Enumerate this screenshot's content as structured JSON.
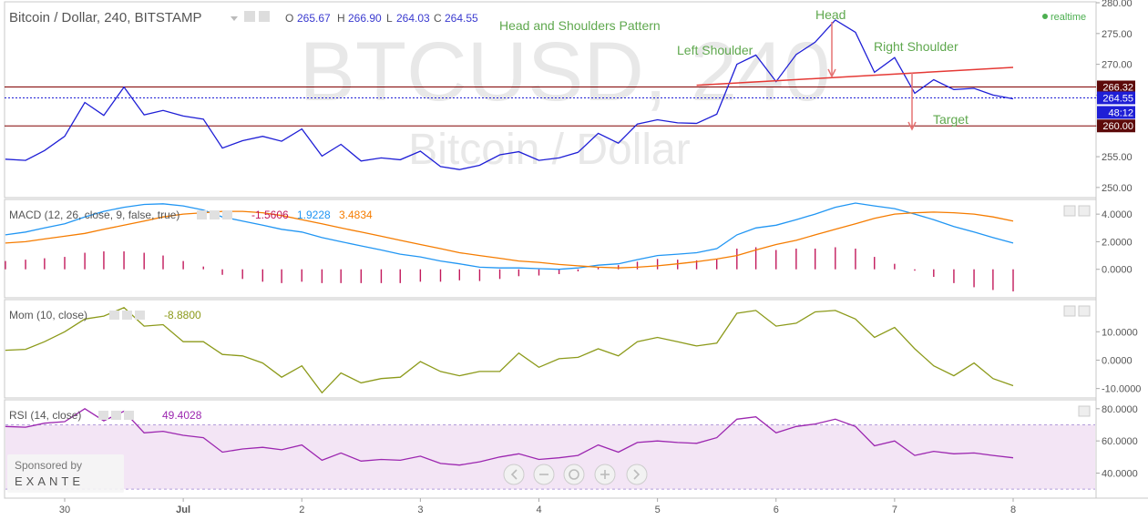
{
  "header": {
    "symbol": "Bitcoin / Dollar, 240, BITSTAMP",
    "o_label": "O",
    "o_value": "265.67",
    "h_label": "H",
    "h_value": "266.90",
    "l_label": "L",
    "l_value": "264.03",
    "c_label": "C",
    "c_value": "264.55",
    "realtime": "realtime"
  },
  "watermark": {
    "main": "BTCUSD, 240",
    "sub": "Bitcoin / Dollar"
  },
  "annotations": {
    "pattern": "Head and Shoulders Pattern",
    "head": "Head",
    "left_shoulder": "Left Shoulder",
    "right_shoulder": "Right Shoulder",
    "target": "Target"
  },
  "price_markers": {
    "resistance": "266.32",
    "last": "264.55",
    "countdown": "48:12",
    "support": "260.00"
  },
  "sponsor": {
    "line1": "Sponsored by",
    "line2": "EXANTE"
  },
  "colors": {
    "price": "#1f1fd6",
    "macd": "#2196f3",
    "signal": "#f57c00",
    "hist": "#c2185b",
    "mom": "#8c9a1a",
    "rsi": "#9c27b0",
    "rsi_band": "#f3e5f5",
    "level_line": "#800000",
    "neckline": "#e53935",
    "annotation": "#5fa84e"
  },
  "chart_data": [
    {
      "type": "line",
      "pane": "price",
      "ylim": [
        248.5,
        280
      ],
      "yticks": [
        "250.00",
        "255.00",
        "260.00",
        "265.00",
        "270.00",
        "275.00",
        "280.00"
      ],
      "x": [
        -0.5,
        -0.33,
        -0.17,
        0,
        0.17,
        0.33,
        0.5,
        0.67,
        0.83,
        1,
        1.17,
        1.33,
        1.5,
        1.67,
        1.83,
        2,
        2.17,
        2.33,
        2.5,
        2.67,
        2.83,
        3,
        3.17,
        3.33,
        3.5,
        3.67,
        3.83,
        4,
        4.17,
        4.33,
        4.5,
        4.67,
        4.83,
        5,
        5.17,
        5.33,
        5.5,
        5.67,
        5.83,
        6,
        6.17,
        6.33,
        6.5,
        6.67,
        6.83,
        7,
        7.17,
        7.33,
        7.5,
        7.67,
        7.83,
        8
      ],
      "series": [
        {
          "values": [
            254.6,
            254.4,
            256,
            258.3,
            263.8,
            261.7,
            266.3,
            261.8,
            262.5,
            261.6,
            261.1,
            256.4,
            257.6,
            258.3,
            257.5,
            259.5,
            255.1,
            257,
            254.3,
            254.8,
            254.5,
            255.9,
            253.4,
            252.9,
            253.6,
            255.3,
            255.8,
            254.4,
            254.8,
            255.7,
            258.8,
            257.2,
            260.3,
            261,
            260.5,
            260.4,
            261.9,
            270,
            271.5,
            267.2,
            271.6,
            273.6,
            277.2,
            275.2,
            268.7,
            271.1,
            265.3,
            267.5,
            265.9,
            266.1,
            265,
            264.4
          ]
        }
      ],
      "levels": [
        266.32,
        264.55,
        260.0
      ],
      "neckline": [
        [
          5.33,
          266.6
        ],
        [
          8,
          269.5
        ]
      ]
    },
    {
      "type": "bar",
      "pane": "macd",
      "title": "MACD (12, 26, close, 9, false, true)",
      "legend_values": [
        "-1.5606",
        "1.9228",
        "3.4834"
      ],
      "ylim": [
        -2.0,
        5.0
      ],
      "yticks": [
        "0.0000",
        "2.0000",
        "4.0000"
      ],
      "x": [
        -0.5,
        -0.33,
        -0.17,
        0,
        0.17,
        0.33,
        0.5,
        0.67,
        0.83,
        1,
        1.17,
        1.33,
        1.5,
        1.67,
        1.83,
        2,
        2.17,
        2.33,
        2.5,
        2.67,
        2.83,
        3,
        3.17,
        3.33,
        3.5,
        3.67,
        3.83,
        4,
        4.17,
        4.33,
        4.5,
        4.67,
        4.83,
        5,
        5.17,
        5.33,
        5.5,
        5.67,
        5.83,
        6,
        6.17,
        6.33,
        6.5,
        6.67,
        6.83,
        7,
        7.17,
        7.33,
        7.5,
        7.67,
        7.83,
        8
      ],
      "series": [
        {
          "values": [
            2.5,
            2.7,
            3.0,
            3.3,
            3.8,
            4.2,
            4.5,
            4.7,
            4.75,
            4.6,
            4.3,
            3.8,
            3.5,
            3.2,
            2.9,
            2.7,
            2.3,
            2.0,
            1.7,
            1.4,
            1.1,
            0.9,
            0.6,
            0.4,
            0.15,
            0.1,
            0.1,
            0.05,
            0.0,
            0.1,
            0.3,
            0.4,
            0.7,
            1.0,
            1.1,
            1.2,
            1.5,
            2.5,
            3.0,
            3.2,
            3.6,
            4.0,
            4.5,
            4.8,
            4.6,
            4.4,
            4.0,
            3.6,
            3.1,
            2.7,
            2.3,
            1.9
          ]
        },
        {
          "values": [
            1.9,
            2.0,
            2.2,
            2.4,
            2.6,
            2.9,
            3.2,
            3.5,
            3.8,
            4.0,
            4.1,
            4.2,
            4.2,
            4.1,
            3.9,
            3.6,
            3.3,
            3.0,
            2.7,
            2.4,
            2.1,
            1.8,
            1.5,
            1.2,
            1.0,
            0.8,
            0.6,
            0.5,
            0.35,
            0.25,
            0.15,
            0.1,
            0.15,
            0.25,
            0.4,
            0.55,
            0.75,
            1.0,
            1.4,
            1.8,
            2.1,
            2.5,
            2.9,
            3.3,
            3.7,
            4.0,
            4.1,
            4.15,
            4.1,
            4.0,
            3.8,
            3.5
          ]
        },
        {
          "values": [
            0.6,
            0.7,
            0.8,
            0.9,
            1.2,
            1.3,
            1.3,
            1.2,
            1.0,
            0.6,
            0.2,
            -0.4,
            -0.7,
            -0.9,
            -1.0,
            -0.9,
            -1.0,
            -1.0,
            -1.0,
            -1.0,
            -1.0,
            -0.9,
            -0.9,
            -0.8,
            -0.85,
            -0.7,
            -0.5,
            -0.45,
            -0.35,
            -0.15,
            0.15,
            0.3,
            0.55,
            0.75,
            0.7,
            0.65,
            0.75,
            1.5,
            1.6,
            1.4,
            1.5,
            1.5,
            1.6,
            1.5,
            0.9,
            0.4,
            -0.1,
            -0.55,
            -1.0,
            -1.3,
            -1.5,
            -1.6
          ]
        }
      ]
    },
    {
      "type": "line",
      "pane": "mom",
      "title": "Mom (10, close)",
      "legend_values": [
        "-8.8800"
      ],
      "ylim": [
        -13,
        21
      ],
      "yticks": [
        "-10.0000",
        "0.0000",
        "10.0000"
      ],
      "x": [
        -0.5,
        -0.33,
        -0.17,
        0,
        0.17,
        0.33,
        0.5,
        0.67,
        0.83,
        1,
        1.17,
        1.33,
        1.5,
        1.67,
        1.83,
        2,
        2.17,
        2.33,
        2.5,
        2.67,
        2.83,
        3,
        3.17,
        3.33,
        3.5,
        3.67,
        3.83,
        4,
        4.17,
        4.33,
        4.5,
        4.67,
        4.83,
        5,
        5.17,
        5.33,
        5.5,
        5.67,
        5.83,
        6,
        6.17,
        6.33,
        6.5,
        6.67,
        6.83,
        7,
        7.17,
        7.33,
        7.5,
        7.67,
        7.83,
        8
      ],
      "series": [
        {
          "values": [
            3.5,
            3.8,
            6.5,
            10.0,
            14.5,
            15.5,
            18.5,
            12.0,
            12.5,
            6.5,
            6.5,
            2.0,
            1.5,
            -1.0,
            -6.0,
            -2.0,
            -11.5,
            -4.5,
            -8.0,
            -6.5,
            -6.0,
            -0.5,
            -4.0,
            -5.5,
            -4.0,
            -4.0,
            2.5,
            -2.5,
            0.5,
            1.0,
            4.0,
            1.5,
            6.5,
            8.0,
            6.5,
            5.0,
            6.0,
            16.5,
            17.5,
            12.0,
            13.0,
            17.0,
            17.5,
            14.5,
            8.0,
            11.5,
            4.0,
            -2.0,
            -5.5,
            -1.0,
            -6.5,
            -9.0
          ]
        }
      ]
    },
    {
      "type": "line",
      "pane": "rsi",
      "title": "RSI (14, close)",
      "legend_values": [
        "49.4028"
      ],
      "ylim": [
        25,
        85
      ],
      "band": [
        30,
        70
      ],
      "yticks": [
        "40.0000",
        "60.0000",
        "80.0000"
      ],
      "x": [
        -0.5,
        -0.33,
        -0.17,
        0,
        0.17,
        0.33,
        0.5,
        0.67,
        0.83,
        1,
        1.17,
        1.33,
        1.5,
        1.67,
        1.83,
        2,
        2.17,
        2.33,
        2.5,
        2.67,
        2.83,
        3,
        3.17,
        3.33,
        3.5,
        3.67,
        3.83,
        4,
        4.17,
        4.33,
        4.5,
        4.67,
        4.83,
        5,
        5.17,
        5.33,
        5.5,
        5.67,
        5.83,
        6,
        6.17,
        6.33,
        6.5,
        6.67,
        6.83,
        7,
        7.17,
        7.33,
        7.5,
        7.67,
        7.83,
        8
      ],
      "series": [
        {
          "values": [
            69,
            68.5,
            71,
            72,
            80,
            72.5,
            78.5,
            65,
            66,
            63.5,
            62,
            53,
            55,
            56,
            54.5,
            57.5,
            48,
            52.5,
            47.5,
            48.5,
            48,
            50.5,
            46,
            45,
            47,
            50,
            52,
            48.5,
            49.5,
            51,
            57.5,
            53,
            59,
            60,
            59,
            58.5,
            62,
            73.5,
            75,
            65,
            69,
            70.5,
            73.5,
            69,
            57,
            60,
            51,
            53.5,
            52,
            52.5,
            51,
            49.5
          ]
        }
      ]
    },
    {
      "type": "table",
      "pane": "time-axis",
      "categories": [
        "30",
        "Jul",
        "2",
        "3",
        "4",
        "5",
        "6",
        "7",
        "8"
      ],
      "x": [
        0,
        1,
        2,
        3,
        4,
        5,
        6,
        7,
        8
      ]
    }
  ]
}
